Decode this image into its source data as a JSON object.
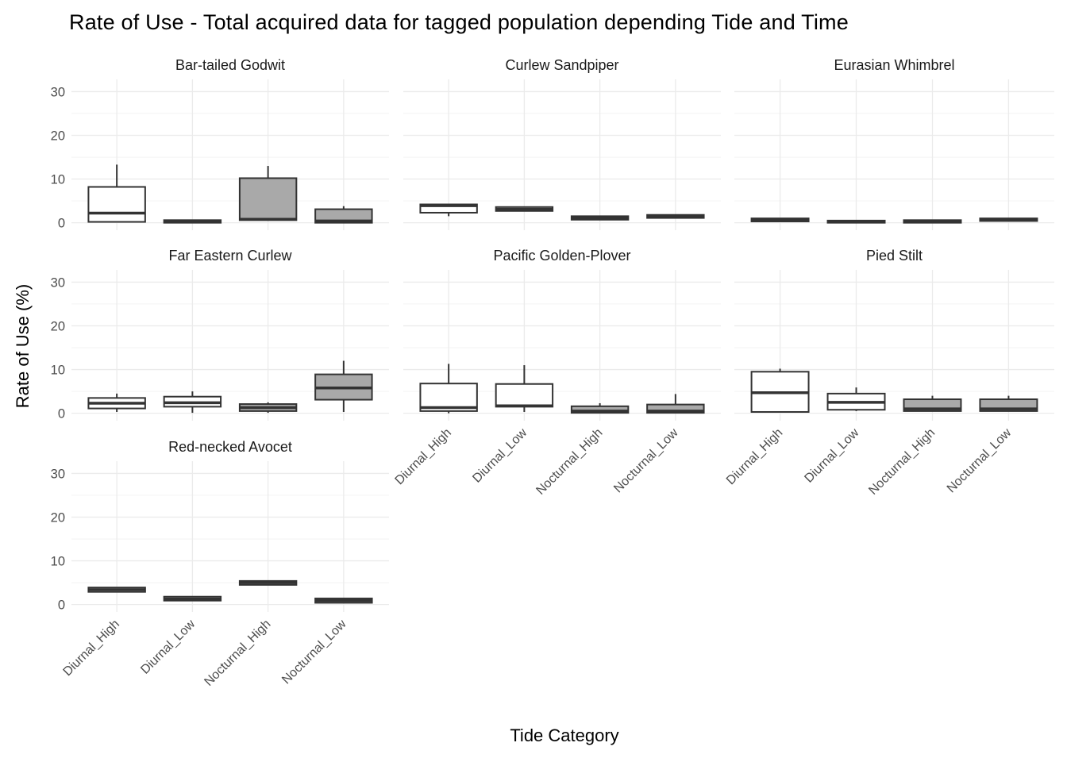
{
  "title": "Rate of Use - Total acquired data for tagged population depending Tide and Time",
  "axes": {
    "x_title": "Tide Category",
    "y_title": "Rate of Use (%)"
  },
  "chart_data": {
    "type": "boxplot",
    "title": "Rate of Use - Total acquired data for tagged population depending Tide and Time",
    "xlabel": "Tide Category",
    "ylabel": "Rate of Use (%)",
    "ylim": [
      0,
      30
    ],
    "y_ticks": [
      0,
      10,
      20,
      30
    ],
    "y_minor_ticks": [
      5,
      15,
      25
    ],
    "grid": "on",
    "legend": "none",
    "categories": [
      "Diurnal_High",
      "Diurnal_Low",
      "Nocturnal_High",
      "Nocturnal_Low"
    ],
    "box_value_order": [
      "whisker_low",
      "q1",
      "median",
      "q3",
      "whisker_high"
    ],
    "colors": {
      "category_fills": [
        "#FFFFFF",
        "#FFFFFF",
        "#A9A9A9",
        "#A9A9A9"
      ],
      "box_stroke": "#333333",
      "grid_major": "#EBEBEB",
      "grid_minor": "#F1F1F1",
      "tick_label": "#4D4D4D",
      "strip_label": "#1A1A1A",
      "background": "#FFFFFF"
    },
    "facets": [
      {
        "title": "Bar-tailed Godwit",
        "row": 0,
        "col": 0,
        "boxes": [
          [
            0.2,
            0.2,
            2.2,
            8.2,
            13.3
          ],
          [
            0.0,
            0.0,
            0.3,
            0.6,
            0.6
          ],
          [
            0.6,
            0.6,
            0.8,
            10.2,
            13.0
          ],
          [
            0.0,
            0.0,
            0.4,
            3.1,
            3.8
          ]
        ]
      },
      {
        "title": "Curlew Sandpiper",
        "row": 0,
        "col": 1,
        "boxes": [
          [
            1.5,
            2.3,
            3.9,
            4.2,
            4.2
          ],
          [
            2.7,
            2.7,
            3.1,
            3.6,
            3.6
          ],
          [
            0.7,
            0.7,
            1.1,
            1.5,
            1.5
          ],
          [
            1.1,
            1.1,
            1.5,
            1.8,
            1.8
          ]
        ]
      },
      {
        "title": "Eurasian Whimbrel",
        "row": 0,
        "col": 2,
        "boxes": [
          [
            0.3,
            0.3,
            0.65,
            1.0,
            1.0
          ],
          [
            0.0,
            0.0,
            0.25,
            0.5,
            0.5
          ],
          [
            0.0,
            0.0,
            0.3,
            0.6,
            0.6
          ],
          [
            0.4,
            0.4,
            0.7,
            1.0,
            1.0
          ]
        ]
      },
      {
        "title": "Far Eastern Curlew",
        "row": 1,
        "col": 0,
        "boxes": [
          [
            0.3,
            1.1,
            2.3,
            3.5,
            4.5
          ],
          [
            0.1,
            1.5,
            2.4,
            3.8,
            5.0
          ],
          [
            0.1,
            0.5,
            1.3,
            2.1,
            2.5
          ],
          [
            0.3,
            3.1,
            5.8,
            8.9,
            12.0
          ]
        ]
      },
      {
        "title": "Pacific Golden-Plover",
        "row": 1,
        "col": 1,
        "boxes": [
          [
            0.0,
            0.5,
            1.3,
            6.8,
            11.3
          ],
          [
            0.3,
            1.5,
            1.7,
            6.7,
            11.0
          ],
          [
            0.0,
            0.1,
            0.5,
            1.6,
            2.3
          ],
          [
            0.0,
            0.1,
            0.5,
            2.0,
            4.4
          ]
        ]
      },
      {
        "title": "Pied Stilt",
        "row": 1,
        "col": 2,
        "boxes": [
          [
            0.3,
            0.3,
            4.7,
            9.5,
            10.2
          ],
          [
            0.5,
            0.8,
            2.5,
            4.5,
            5.9
          ],
          [
            0.4,
            0.5,
            1.0,
            3.2,
            4.0
          ],
          [
            0.4,
            0.5,
            1.0,
            3.2,
            4.0
          ]
        ]
      },
      {
        "title": "Red-necked Avocet",
        "row": 2,
        "col": 0,
        "boxes": [
          [
            2.9,
            2.9,
            3.4,
            3.9,
            3.9
          ],
          [
            0.9,
            0.9,
            1.3,
            1.8,
            1.8
          ],
          [
            4.5,
            4.5,
            5.0,
            5.4,
            5.4
          ],
          [
            0.4,
            0.4,
            0.9,
            1.4,
            1.4
          ]
        ]
      }
    ]
  }
}
